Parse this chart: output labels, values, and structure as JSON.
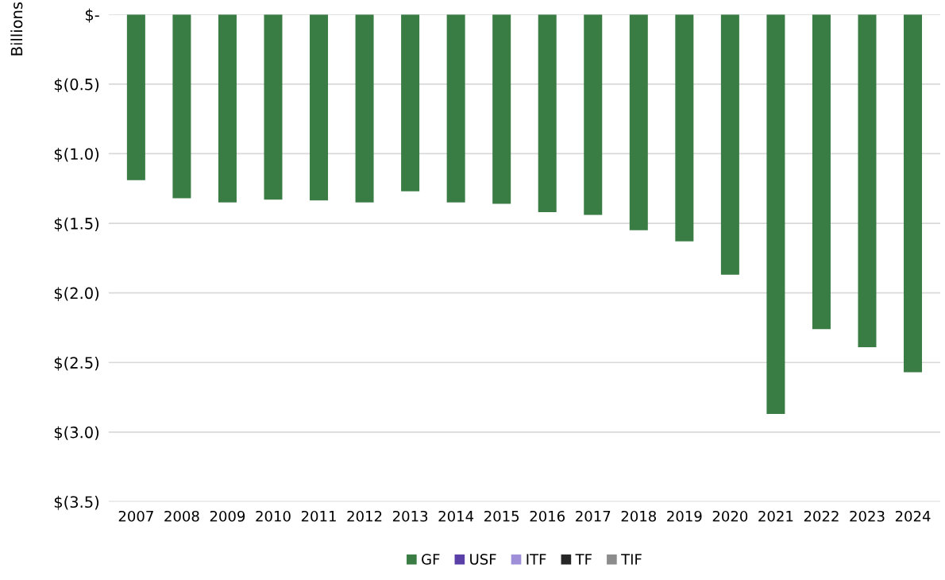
{
  "chart_data": {
    "type": "bar",
    "ylabel": "Billions",
    "categories": [
      "2007",
      "2008",
      "2009",
      "2010",
      "2011",
      "2012",
      "2013",
      "2014",
      "2015",
      "2016",
      "2017",
      "2018",
      "2019",
      "2020",
      "2021",
      "2022",
      "2023",
      "2024"
    ],
    "series": [
      {
        "name": "GF",
        "color": "#3a7d44",
        "values": [
          -1.19,
          -1.32,
          -1.35,
          -1.33,
          -1.335,
          -1.35,
          -1.27,
          -1.35,
          -1.36,
          -1.42,
          -1.44,
          -1.55,
          -1.63,
          -1.87,
          -2.87,
          -2.26,
          -2.39,
          -2.57
        ]
      },
      {
        "name": "USF",
        "color": "#5b3fa8",
        "values": [
          null,
          null,
          null,
          null,
          null,
          null,
          null,
          null,
          null,
          null,
          null,
          null,
          null,
          null,
          null,
          null,
          null,
          null
        ]
      },
      {
        "name": "ITF",
        "color": "#9e8fd8",
        "values": [
          null,
          null,
          null,
          null,
          null,
          null,
          null,
          null,
          null,
          null,
          null,
          null,
          null,
          null,
          null,
          null,
          null,
          null
        ]
      },
      {
        "name": "TF",
        "color": "#262626",
        "values": [
          null,
          null,
          null,
          null,
          null,
          null,
          null,
          null,
          null,
          null,
          null,
          null,
          null,
          null,
          null,
          null,
          null,
          null
        ]
      },
      {
        "name": "TIF",
        "color": "#8c8c8c",
        "values": [
          null,
          null,
          null,
          null,
          null,
          null,
          null,
          null,
          null,
          null,
          null,
          null,
          null,
          null,
          null,
          null,
          null,
          null
        ]
      }
    ],
    "ylim": [
      -3.5,
      0
    ],
    "yticks": [
      {
        "value": 0,
        "label": "$-"
      },
      {
        "value": -0.5,
        "label": "$(0.5)"
      },
      {
        "value": -1.0,
        "label": "$(1.0)"
      },
      {
        "value": -1.5,
        "label": "$(1.5)"
      },
      {
        "value": -2.0,
        "label": "$(2.0)"
      },
      {
        "value": -2.5,
        "label": "$(2.5)"
      },
      {
        "value": -3.0,
        "label": "$(3.0)"
      },
      {
        "value": -3.5,
        "label": "$(3.5)"
      }
    ],
    "grid": "y",
    "legend": "bottom"
  }
}
